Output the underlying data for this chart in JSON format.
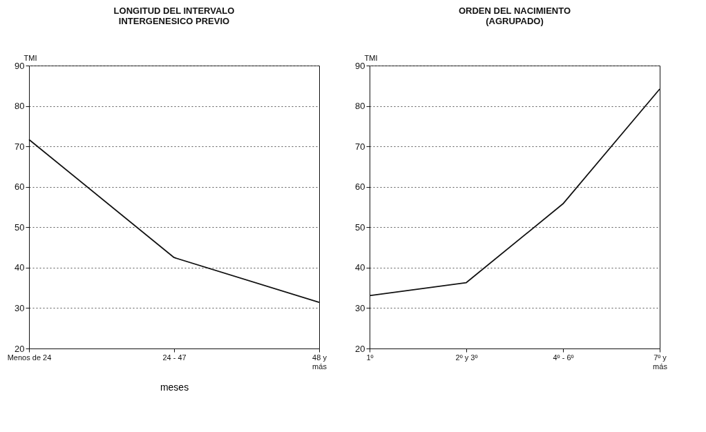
{
  "chart_data": [
    {
      "type": "line",
      "title": "LONGITUD DEL INTERVALO\nINTERGENESICO PREVIO",
      "ylabel": "TMI",
      "xlabel": "meses",
      "categories": [
        "Menos de 24",
        "24 - 47",
        "48 y\nmás"
      ],
      "series": [
        {
          "color": "#111111",
          "values": [
            71.7,
            42.5,
            31.4
          ]
        }
      ],
      "ylim": [
        20,
        90
      ],
      "yticks": [
        20,
        30,
        40,
        50,
        60,
        70,
        80,
        90
      ],
      "grid": "y",
      "line_style": "solid"
    },
    {
      "type": "line",
      "title": "ORDEN DEL NACIMIENTO\n(AGRUPADO)",
      "ylabel": "TMI",
      "categories": [
        "1º",
        "2º y 3º",
        "4º - 6º",
        "7º y\nmás"
      ],
      "series": [
        {
          "color": "#111111",
          "values": [
            33.1,
            36.3,
            55.8,
            84.2
          ]
        }
      ],
      "ylim": [
        20,
        90
      ],
      "yticks": [
        20,
        30,
        40,
        50,
        60,
        70,
        80,
        90
      ],
      "grid": "y",
      "line_style": "solid"
    }
  ]
}
